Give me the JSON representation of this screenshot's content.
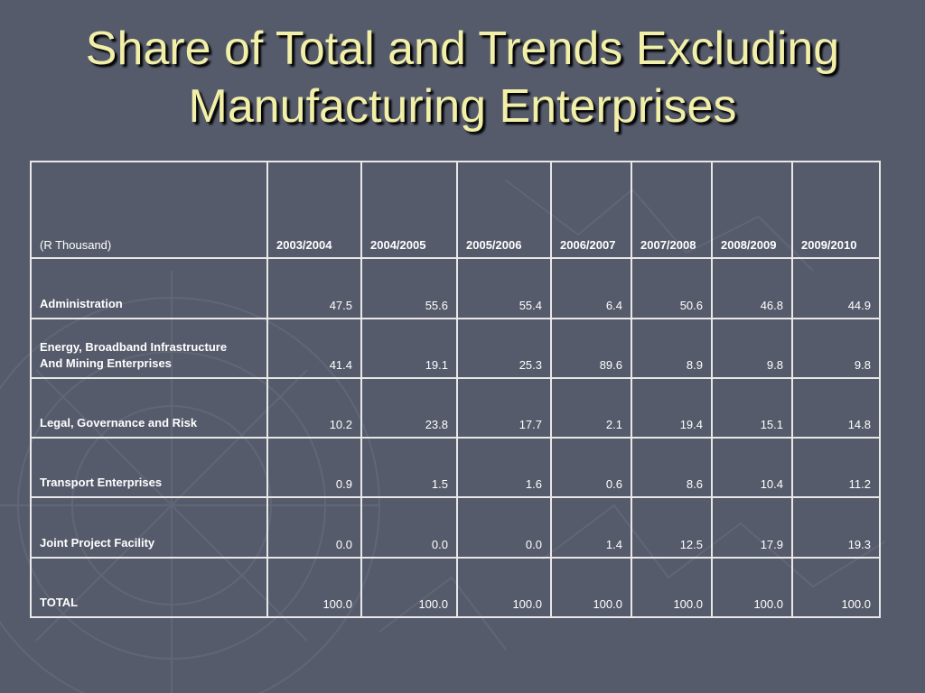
{
  "slide": {
    "title_line1": "Share of Total and Trends Excluding",
    "title_line2": "Manufacturing Enterprises"
  },
  "table": {
    "corner_label": "(R Thousand)",
    "columns": [
      "2003/2004",
      "2004/2005",
      "2005/2006",
      "2006/2007",
      "2007/2008",
      "2008/2009",
      "2009/2010"
    ],
    "rows": [
      {
        "label_line1": "Administration",
        "label_line2": "",
        "values": [
          "47.5",
          "55.6",
          "55.4",
          "6.4",
          "50.6",
          "46.8",
          "44.9"
        ]
      },
      {
        "label_line1": "Energy, Broadband Infrastructure",
        "label_line2": "And Mining Enterprises",
        "values": [
          "41.4",
          "19.1",
          "25.3",
          "89.6",
          "8.9",
          "9.8",
          "9.8"
        ]
      },
      {
        "label_line1": "Legal, Governance and Risk",
        "label_line2": "",
        "values": [
          "10.2",
          "23.8",
          "17.7",
          "2.1",
          "19.4",
          "15.1",
          "14.8"
        ]
      },
      {
        "label_line1": "Transport Enterprises",
        "label_line2": "",
        "values": [
          "0.9",
          "1.5",
          "1.6",
          "0.6",
          "8.6",
          "10.4",
          "11.2"
        ]
      },
      {
        "label_line1": "Joint Project Facility",
        "label_line2": "",
        "values": [
          "0.0",
          "0.0",
          "0.0",
          "1.4",
          "12.5",
          "17.9",
          "19.3"
        ]
      },
      {
        "label_line1": "TOTAL",
        "label_line2": "",
        "values": [
          "100.0",
          "100.0",
          "100.0",
          "100.0",
          "100.0",
          "100.0",
          "100.0"
        ]
      }
    ]
  },
  "theme": {
    "background": "#565b6b",
    "title_color": "#f2f0a8",
    "text_color": "#ffffff",
    "border_color": "#e8e8e8"
  }
}
